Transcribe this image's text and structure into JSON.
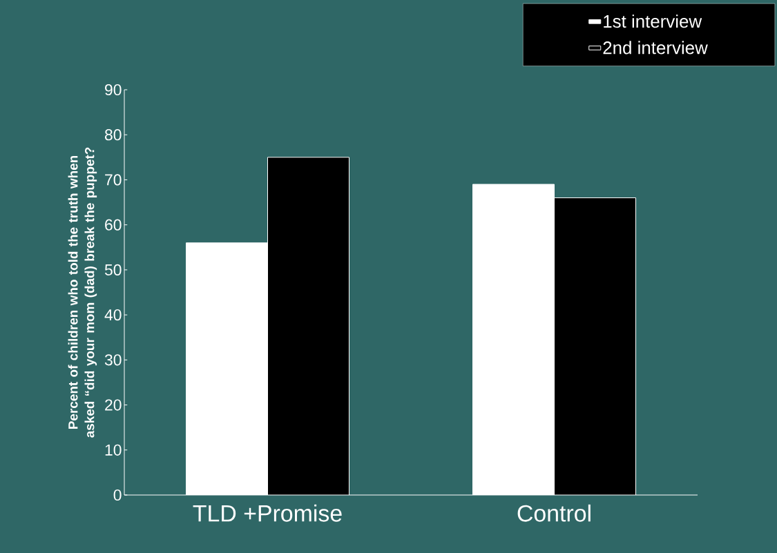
{
  "chart_data": {
    "type": "bar",
    "ylabel": "Percent of children who told the truth when asked “did your mom (dad) break the puppet?",
    "categories": [
      "TLD +Promise",
      "Control"
    ],
    "series": [
      {
        "name": "1st interview",
        "color": "#ffffff",
        "values": [
          56,
          69
        ]
      },
      {
        "name": "2nd interview",
        "color": "#000000",
        "values": [
          75,
          66
        ]
      }
    ],
    "ylim": [
      0,
      90
    ],
    "yticks": [
      0,
      10,
      20,
      30,
      40,
      50,
      60,
      70,
      80,
      90
    ],
    "legend": "top right",
    "grid": false
  }
}
